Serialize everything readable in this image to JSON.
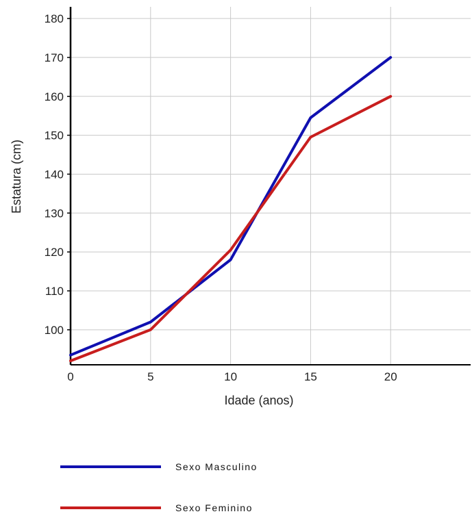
{
  "chart_data": {
    "type": "line",
    "title": "",
    "xlabel": "Idade (anos)",
    "ylabel": "Estatura (cm)",
    "x_ticks": [
      0,
      5,
      10,
      15,
      20
    ],
    "y_ticks": [
      100,
      110,
      120,
      130,
      140,
      150,
      160,
      170,
      180
    ],
    "xlim": [
      0,
      25
    ],
    "ylim": [
      91,
      183
    ],
    "grid": true,
    "legend_position": "bottom",
    "series": [
      {
        "name": "Sexo Masculino",
        "color": "#1010b0",
        "x": [
          0,
          5,
          10,
          15,
          20
        ],
        "y": [
          93.5,
          102,
          118,
          154.5,
          170
        ]
      },
      {
        "name": "Sexo Feminino",
        "color": "#c81e1e",
        "x": [
          0,
          5,
          10,
          15,
          20
        ],
        "y": [
          92,
          100,
          120.5,
          149.5,
          160
        ]
      }
    ]
  }
}
